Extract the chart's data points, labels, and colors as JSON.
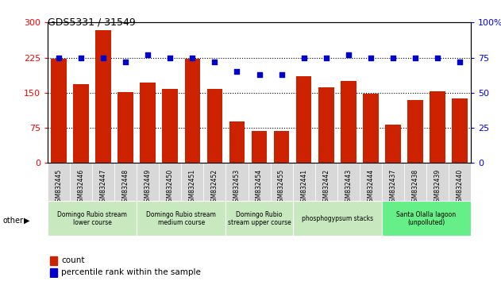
{
  "title": "GDS5331 / 31549",
  "samples": [
    "GSM832445",
    "GSM832446",
    "GSM832447",
    "GSM832448",
    "GSM832449",
    "GSM832450",
    "GSM832451",
    "GSM832452",
    "GSM832453",
    "GSM832454",
    "GSM832455",
    "GSM832441",
    "GSM832442",
    "GSM832443",
    "GSM832444",
    "GSM832437",
    "GSM832438",
    "GSM832439",
    "GSM832440"
  ],
  "counts": [
    222,
    168,
    284,
    152,
    172,
    158,
    222,
    158,
    88,
    68,
    68,
    185,
    162,
    175,
    148,
    82,
    135,
    153,
    137
  ],
  "percentiles": [
    75,
    75,
    75,
    72,
    77,
    75,
    75,
    72,
    65,
    63,
    63,
    75,
    75,
    77,
    75,
    75,
    75,
    75,
    72
  ],
  "groups": [
    {
      "label": "Domingo Rubio stream\nlower course",
      "start": 0,
      "end": 4,
      "color": "#c8e8c0"
    },
    {
      "label": "Domingo Rubio stream\nmedium course",
      "start": 4,
      "end": 8,
      "color": "#c8e8c0"
    },
    {
      "label": "Domingo Rubio\nstream upper course",
      "start": 8,
      "end": 11,
      "color": "#c8e8c0"
    },
    {
      "label": "phosphogypsum stacks",
      "start": 11,
      "end": 15,
      "color": "#c8e8c0"
    },
    {
      "label": "Santa Olalla lagoon\n(unpolluted)",
      "start": 15,
      "end": 19,
      "color": "#66ee88"
    }
  ],
  "bar_color": "#cc2200",
  "dot_color": "#0000cc",
  "ylim_left": [
    0,
    300
  ],
  "ylim_right": [
    0,
    100
  ],
  "yticks_left": [
    0,
    75,
    150,
    225,
    300
  ],
  "yticks_right": [
    0,
    25,
    50,
    75,
    100
  ],
  "hlines": [
    75,
    150,
    225
  ],
  "tick_bg": "#d8d8d8",
  "plot_bg": "#ffffff",
  "fig_bg": "#ffffff"
}
